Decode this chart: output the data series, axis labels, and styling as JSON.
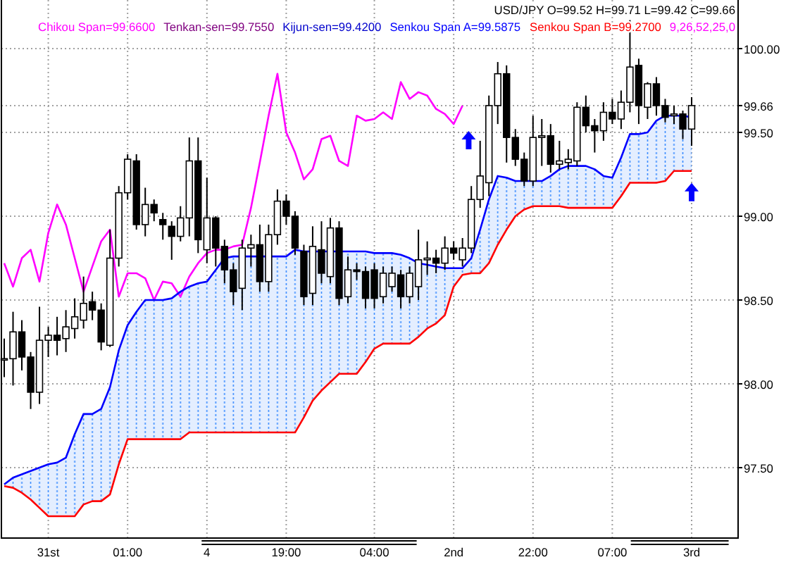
{
  "chart_data": {
    "type": "candlestick",
    "title": "USD/JPY O=99.52 H=99.71 L=99.42 C=99.66",
    "categories": [
      null,
      null,
      null,
      null,
      null,
      "31st",
      null,
      null,
      null,
      null,
      null,
      null,
      null,
      null,
      "01:00",
      null,
      null,
      null,
      null,
      null,
      null,
      null,
      null,
      "4",
      null,
      null,
      null,
      null,
      null,
      null,
      null,
      null,
      "19:00",
      null,
      null,
      null,
      null,
      null,
      null,
      null,
      null,
      null,
      "04:00",
      null,
      null,
      null,
      null,
      null,
      null,
      null,
      null,
      "2nd",
      null,
      null,
      null,
      null,
      null,
      null,
      null,
      null,
      "22:00",
      null,
      null,
      null,
      null,
      null,
      null,
      null,
      null,
      "07:00",
      null,
      null,
      null,
      null,
      null,
      null,
      null,
      null,
      "3rd"
    ],
    "ohlc": [
      [
        98.15,
        98.27,
        98.04,
        98.15
      ],
      [
        98.15,
        98.43,
        97.99,
        98.31
      ],
      [
        98.31,
        98.38,
        98.08,
        98.16
      ],
      [
        98.16,
        98.19,
        97.85,
        97.95
      ],
      [
        97.95,
        98.46,
        97.88,
        98.26
      ],
      [
        98.26,
        98.34,
        98.16,
        98.29
      ],
      [
        98.29,
        98.4,
        98.17,
        98.26
      ],
      [
        98.27,
        98.44,
        98.19,
        98.34
      ],
      [
        98.33,
        98.51,
        98.27,
        98.4
      ],
      [
        98.38,
        98.64,
        98.33,
        98.48
      ],
      [
        98.49,
        98.55,
        98.38,
        98.44
      ],
      [
        98.44,
        98.48,
        98.2,
        98.25
      ],
      [
        98.23,
        98.92,
        98.22,
        98.75
      ],
      [
        98.75,
        99.18,
        98.7,
        99.14
      ],
      [
        99.14,
        99.37,
        99.1,
        99.34
      ],
      [
        99.33,
        99.37,
        98.92,
        98.95
      ],
      [
        98.95,
        99.17,
        98.88,
        99.07
      ],
      [
        99.07,
        99.1,
        98.97,
        99.02
      ],
      [
        98.98,
        99.02,
        98.86,
        98.95
      ],
      [
        98.94,
        98.97,
        98.74,
        98.88
      ],
      [
        98.88,
        99.06,
        98.85,
        98.99
      ],
      [
        98.99,
        99.47,
        98.88,
        99.33
      ],
      [
        99.33,
        99.47,
        98.78,
        98.86
      ],
      [
        98.8,
        99.23,
        98.72,
        98.99
      ],
      [
        98.99,
        99.0,
        98.7,
        98.81
      ],
      [
        98.82,
        98.86,
        98.6,
        98.68
      ],
      [
        98.68,
        98.72,
        98.47,
        98.55
      ],
      [
        98.57,
        98.86,
        98.44,
        98.81
      ],
      [
        98.81,
        98.89,
        98.7,
        98.83
      ],
      [
        98.83,
        98.95,
        98.55,
        98.61
      ],
      [
        98.61,
        98.95,
        98.55,
        98.89
      ],
      [
        98.89,
        99.16,
        98.83,
        99.09
      ],
      [
        99.09,
        99.13,
        98.95,
        99.0
      ],
      [
        99.0,
        99.03,
        98.77,
        98.81
      ],
      [
        98.79,
        98.83,
        98.47,
        98.52
      ],
      [
        98.54,
        98.94,
        98.47,
        98.82
      ],
      [
        98.8,
        98.97,
        98.6,
        98.66
      ],
      [
        98.64,
        98.99,
        98.6,
        98.93
      ],
      [
        98.93,
        98.97,
        98.47,
        98.51
      ],
      [
        98.52,
        98.76,
        98.48,
        98.68
      ],
      [
        98.68,
        98.72,
        98.62,
        98.67
      ],
      [
        98.67,
        98.7,
        98.45,
        98.51
      ],
      [
        98.68,
        98.72,
        98.45,
        98.51
      ],
      [
        98.52,
        98.7,
        98.48,
        98.66
      ],
      [
        98.58,
        98.7,
        98.55,
        98.66
      ],
      [
        98.65,
        98.68,
        98.45,
        98.52
      ],
      [
        98.52,
        98.7,
        98.48,
        98.66
      ],
      [
        98.58,
        98.92,
        98.5,
        98.74
      ],
      [
        98.74,
        98.85,
        98.65,
        98.75
      ],
      [
        98.75,
        98.8,
        98.66,
        98.72
      ],
      [
        98.72,
        98.88,
        98.68,
        98.81
      ],
      [
        98.81,
        98.85,
        98.74,
        98.78
      ],
      [
        98.74,
        98.87,
        98.7,
        98.81
      ],
      [
        98.81,
        99.18,
        98.78,
        99.1
      ],
      [
        99.1,
        99.45,
        99.05,
        99.24
      ],
      [
        99.2,
        99.72,
        99.12,
        99.66
      ],
      [
        99.66,
        99.92,
        99.55,
        99.85
      ],
      [
        99.85,
        99.9,
        99.32,
        99.47
      ],
      [
        99.47,
        99.52,
        99.3,
        99.34
      ],
      [
        99.34,
        99.38,
        99.18,
        99.21
      ],
      [
        99.21,
        99.6,
        99.18,
        99.47
      ],
      [
        99.47,
        99.58,
        99.3,
        99.48
      ],
      [
        99.48,
        99.55,
        99.26,
        99.31
      ],
      [
        99.31,
        99.45,
        99.28,
        99.33
      ],
      [
        99.32,
        99.4,
        99.28,
        99.34
      ],
      [
        99.33,
        99.68,
        99.3,
        99.65
      ],
      [
        99.65,
        99.72,
        99.5,
        99.54
      ],
      [
        99.54,
        99.58,
        99.38,
        99.51
      ],
      [
        99.51,
        99.68,
        99.45,
        99.62
      ],
      [
        99.62,
        99.7,
        99.55,
        99.58
      ],
      [
        99.58,
        99.75,
        99.52,
        99.68
      ],
      [
        99.68,
        100.17,
        99.62,
        99.89
      ],
      [
        99.9,
        99.94,
        99.55,
        99.66
      ],
      [
        99.65,
        99.8,
        99.58,
        99.79
      ],
      [
        99.79,
        99.83,
        99.6,
        99.66
      ],
      [
        99.66,
        99.7,
        99.56,
        99.59
      ],
      [
        99.6,
        99.66,
        99.55,
        99.61
      ],
      [
        99.61,
        99.63,
        99.46,
        99.52
      ],
      [
        99.52,
        99.71,
        99.42,
        99.66
      ]
    ],
    "series": [
      {
        "name": "Chikou Span=99.6600",
        "type": "line",
        "color": "#ff00ff",
        "values": [
          98.72,
          98.58,
          98.75,
          98.8,
          98.61,
          98.9,
          99.07,
          98.95,
          98.75,
          98.55,
          98.7,
          98.85,
          98.92,
          98.52,
          98.66,
          98.66,
          98.63,
          98.5,
          98.61,
          98.6,
          98.52,
          98.64,
          98.72,
          98.78,
          98.8,
          98.8,
          98.82,
          98.83,
          99.05,
          99.32,
          99.6,
          99.85,
          99.5,
          99.38,
          99.22,
          99.28,
          99.46,
          99.48,
          99.33,
          99.3,
          99.6,
          99.57,
          99.58,
          99.62,
          99.58,
          99.8,
          99.7,
          99.74,
          99.72,
          99.64,
          99.61,
          99.55,
          99.66,
          null,
          null,
          null,
          null,
          null,
          null,
          null,
          null,
          null,
          null,
          null,
          null,
          null,
          null,
          null,
          null,
          null,
          null,
          null,
          null,
          null,
          null,
          null,
          null,
          null,
          null
        ]
      },
      {
        "name": "Tenkan-sen=99.7550",
        "type": "line",
        "color": "#800080",
        "values": [
          null,
          null,
          null,
          null,
          null,
          null,
          null,
          null,
          null,
          null,
          null,
          null,
          null,
          null,
          null,
          null,
          null,
          null,
          null,
          null,
          null,
          null,
          null,
          null,
          null,
          null,
          null,
          null,
          null,
          null,
          null,
          null,
          null,
          null,
          null,
          null,
          null,
          null,
          null,
          null,
          null,
          null,
          null,
          null,
          null,
          null,
          null,
          null,
          null,
          null,
          null,
          null,
          null,
          null,
          null,
          null,
          null,
          null,
          null,
          null,
          null,
          null,
          null,
          null,
          null,
          null,
          null,
          null,
          null,
          null,
          null,
          null,
          null,
          null,
          null,
          null,
          null,
          null,
          null
        ]
      },
      {
        "name": "Kijun-sen=99.4200",
        "type": "line",
        "color": "#0000cc",
        "values": [
          null,
          null,
          null,
          null,
          null,
          null,
          null,
          null,
          null,
          null,
          null,
          null,
          null,
          null,
          null,
          null,
          null,
          null,
          null,
          null,
          null,
          null,
          null,
          null,
          null,
          null,
          null,
          null,
          null,
          null,
          null,
          null,
          null,
          null,
          null,
          null,
          null,
          null,
          null,
          null,
          null,
          null,
          null,
          null,
          null,
          null,
          null,
          null,
          null,
          null,
          null,
          null,
          null,
          null,
          null,
          null,
          null,
          null,
          null,
          null,
          null,
          null,
          null,
          null,
          null,
          null,
          null,
          null,
          null,
          null,
          null,
          null,
          null,
          null,
          null,
          null,
          null,
          null,
          null
        ]
      },
      {
        "name": "Senkou Span A=99.5875",
        "type": "line",
        "color": "#0000ff",
        "upper": [
          97.4,
          97.44,
          97.46,
          97.48,
          97.5,
          97.52,
          97.53,
          97.56,
          97.7,
          97.82,
          97.82,
          97.85,
          97.98,
          98.2,
          98.35,
          98.43,
          98.5,
          98.5,
          98.5,
          98.51,
          98.55,
          98.58,
          98.6,
          98.61,
          98.68,
          98.75,
          98.76,
          98.76,
          98.76,
          98.76,
          98.76,
          98.76,
          98.76,
          98.8,
          98.79,
          98.79,
          98.79,
          98.79,
          98.79,
          98.79,
          98.79,
          98.79,
          98.78,
          98.78,
          98.78,
          98.77,
          98.75,
          98.72,
          98.71,
          98.7,
          98.69,
          98.69,
          98.69,
          98.75,
          98.92,
          99.1,
          99.24,
          99.23,
          99.21,
          99.21,
          99.21,
          99.21,
          99.24,
          99.28,
          99.3,
          99.3,
          99.3,
          99.28,
          99.24,
          99.23,
          99.35,
          99.49,
          99.49,
          99.5,
          99.57,
          99.6,
          99.6,
          99.6,
          99.59
        ],
        "lower": [
          97.39,
          97.38,
          97.35,
          97.31,
          97.26,
          97.21,
          97.21,
          97.21,
          97.21,
          97.28,
          97.3,
          97.3,
          97.34,
          97.52,
          97.67,
          97.67,
          97.67,
          97.67,
          97.67,
          97.67,
          97.67,
          97.71,
          97.71,
          97.71,
          97.71,
          97.71,
          97.71,
          97.71,
          97.71,
          97.71,
          97.71,
          97.71,
          97.71,
          97.71,
          97.8,
          97.9,
          97.96,
          98.01,
          98.06,
          98.06,
          98.06,
          98.13,
          98.21,
          98.24,
          98.24,
          98.24,
          98.24,
          98.28,
          98.33,
          98.36,
          98.41,
          98.58,
          98.65,
          98.66,
          98.66,
          98.72,
          98.83,
          98.92,
          99.0,
          99.04,
          99.06,
          99.06,
          99.06,
          99.06,
          99.05,
          99.05,
          99.05,
          99.05,
          99.05,
          99.05,
          99.12,
          99.2,
          99.2,
          99.2,
          99.2,
          99.21,
          99.27,
          99.27,
          99.27
        ],
        "values": [
          97.4,
          97.44,
          97.46,
          97.48,
          97.5,
          97.52,
          97.53,
          97.56,
          97.7,
          97.82,
          97.82,
          97.85,
          97.98,
          98.2,
          98.35,
          98.43,
          98.5,
          98.5,
          98.5,
          98.51,
          98.55,
          98.58,
          98.6,
          98.61,
          98.68,
          98.75,
          98.76,
          98.76,
          98.76,
          98.76,
          98.76,
          98.76,
          98.76,
          98.8,
          98.79,
          98.79,
          98.79,
          98.79,
          98.79,
          98.79,
          98.79,
          98.79,
          98.78,
          98.78,
          98.78,
          98.77,
          98.75,
          98.72,
          98.71,
          98.7,
          98.69,
          98.69,
          98.69,
          98.75,
          98.92,
          99.1,
          99.24,
          99.23,
          99.21,
          99.21,
          99.21,
          99.21,
          99.24,
          99.28,
          99.3,
          99.3,
          99.3,
          99.28,
          99.24,
          99.23,
          99.35,
          99.49,
          99.49,
          99.5,
          99.57,
          99.6,
          99.6,
          99.6,
          99.59
        ]
      },
      {
        "name": "Senkou Span B=99.2700",
        "type": "line",
        "color": "#ff0000",
        "values": [
          97.39,
          97.38,
          97.35,
          97.31,
          97.26,
          97.21,
          97.21,
          97.21,
          97.21,
          97.28,
          97.3,
          97.3,
          97.34,
          97.52,
          97.67,
          97.67,
          97.67,
          97.67,
          97.67,
          97.67,
          97.67,
          97.71,
          97.71,
          97.71,
          97.71,
          97.71,
          97.71,
          97.71,
          97.71,
          97.71,
          97.71,
          97.71,
          97.71,
          97.71,
          97.8,
          97.9,
          97.96,
          98.01,
          98.06,
          98.06,
          98.06,
          98.13,
          98.21,
          98.24,
          98.24,
          98.24,
          98.24,
          98.28,
          98.33,
          98.36,
          98.41,
          98.58,
          98.65,
          98.66,
          98.66,
          98.72,
          98.83,
          98.92,
          99.0,
          99.04,
          99.06,
          99.06,
          99.06,
          99.06,
          99.05,
          99.05,
          99.05,
          99.05,
          99.05,
          99.05,
          99.12,
          99.2,
          99.2,
          99.2,
          99.2,
          99.21,
          99.27,
          99.27,
          99.27
        ]
      }
    ],
    "ylim": [
      97.08,
      100.29
    ],
    "yticks": [
      {
        "value": 97.5,
        "label": "97.50"
      },
      {
        "value": 98,
        "label": "98.00"
      },
      {
        "value": 98.5,
        "label": "98.50"
      },
      {
        "value": 99,
        "label": "99.00"
      },
      {
        "value": 99.5,
        "label": "99.50"
      },
      99.66,
      {
        "value": 100,
        "label": "100.00"
      }
    ],
    "grid": true,
    "legend": "top right",
    "annotations": [
      "9,26,52,25,0"
    ]
  }
}
